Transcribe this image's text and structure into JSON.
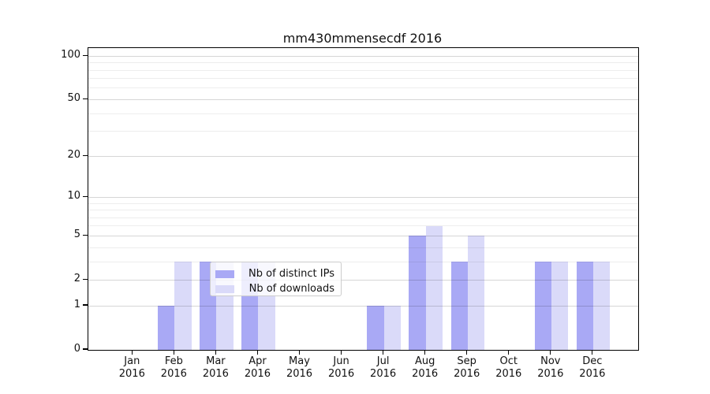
{
  "chart_data": {
    "type": "bar",
    "title": "mm430mmensecdf 2016",
    "categories": [
      "Jan 2016",
      "Feb 2016",
      "Mar 2016",
      "Apr 2016",
      "May 2016",
      "Jun 2016",
      "Jul 2016",
      "Aug 2016",
      "Sep 2016",
      "Oct 2016",
      "Nov 2016",
      "Dec 2016"
    ],
    "series": [
      {
        "name": "Nb of distinct IPs",
        "color": "#a9a9f5",
        "values": [
          0,
          1,
          3,
          3,
          0,
          0,
          1,
          5,
          3,
          0,
          3,
          3
        ]
      },
      {
        "name": "Nb of downloads",
        "color": "#dadaf9",
        "values": [
          0,
          3,
          3,
          3,
          0,
          0,
          1,
          6,
          5,
          0,
          3,
          3
        ]
      }
    ],
    "xlabel": "",
    "ylabel": "",
    "yscale": "log1p",
    "ylim": [
      0,
      113
    ],
    "y_major_ticks": [
      0,
      1,
      2,
      5,
      10,
      20,
      50,
      100
    ],
    "y_minor_ticks": [
      3,
      4,
      6,
      7,
      8,
      9,
      30,
      40,
      60,
      70,
      80,
      90
    ],
    "grid": true,
    "legend_position": "lower-center-inside"
  },
  "colors": {
    "axis": "#000000",
    "grid_major": "rgba(0,0,0,0.16)",
    "grid_minor": "rgba(0,0,0,0.07)",
    "legend_border": "#cccccc"
  }
}
